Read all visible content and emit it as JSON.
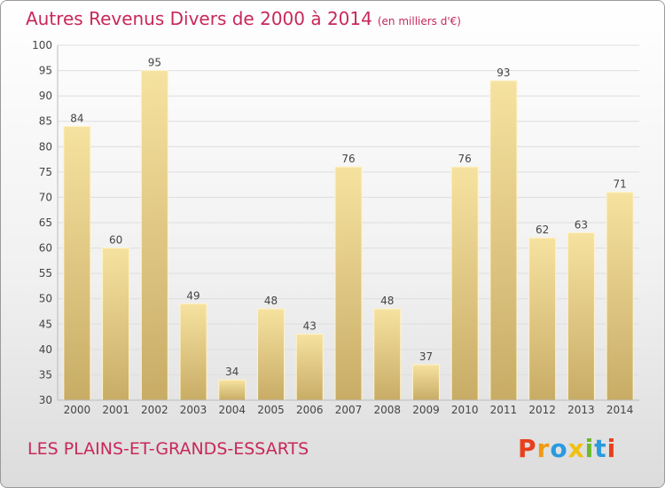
{
  "header": {
    "title": "Autres Revenus Divers de 2000 à 2014",
    "unit": "(en milliers d'€)"
  },
  "footer": {
    "commune": "LES PLAINS-ET-GRANDS-ESSARTS",
    "logo": "Proxiti"
  },
  "colors": {
    "title": "#c8285a",
    "bar_light": "#f6e2a0",
    "bar_dark": "#c8ac66",
    "logo_letters": [
      "#e8401c",
      "#f09a10",
      "#2a9adf",
      "#f0c010",
      "#6aba2a",
      "#2a9adf",
      "#e8401c"
    ]
  },
  "chart_data": {
    "type": "bar",
    "title": "Autres Revenus Divers de 2000 à 2014",
    "xlabel": "",
    "ylabel": "",
    "categories": [
      "2000",
      "2001",
      "2002",
      "2003",
      "2004",
      "2005",
      "2006",
      "2007",
      "2008",
      "2009",
      "2010",
      "2011",
      "2012",
      "2013",
      "2014"
    ],
    "values": [
      84,
      60,
      95,
      49,
      34,
      48,
      43,
      76,
      48,
      37,
      76,
      93,
      62,
      63,
      71
    ],
    "ylim": [
      30,
      100
    ],
    "yticks": [
      30,
      35,
      40,
      45,
      50,
      55,
      60,
      65,
      70,
      75,
      80,
      85,
      90,
      95,
      100
    ],
    "grid": true,
    "data_labels": true
  }
}
